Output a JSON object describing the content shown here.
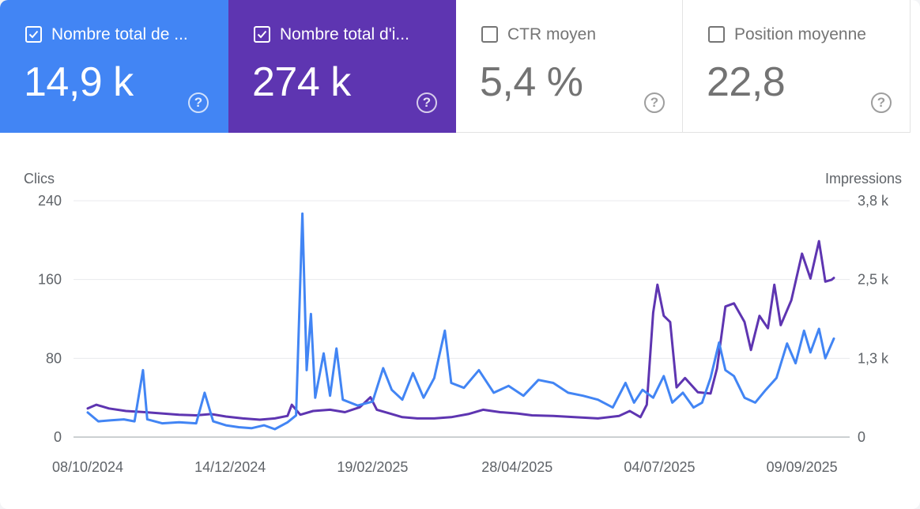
{
  "metrics": [
    {
      "label": "Nombre total de ...",
      "value": "14,9 k",
      "checked": true,
      "color": "#4285f4",
      "help": "?"
    },
    {
      "label": "Nombre total d'i...",
      "value": "274 k",
      "checked": true,
      "color": "#5e35b1",
      "help": "?"
    },
    {
      "label": "CTR moyen",
      "value": "5,4 %",
      "checked": false,
      "color": "#ffffff",
      "help": "?"
    },
    {
      "label": "Position moyenne",
      "value": "22,8",
      "checked": false,
      "color": "#ffffff",
      "help": "?"
    }
  ],
  "chart_data": {
    "type": "line",
    "ylabel_left": "Clics",
    "ylabel_right": "Impressions",
    "y_left_ticks": [
      "240",
      "160",
      "80",
      "0"
    ],
    "y_left_range": [
      0,
      240
    ],
    "y_right_ticks": [
      "3,8 k",
      "2,5 k",
      "1,3 k",
      "0"
    ],
    "y_right_range": [
      0,
      3800
    ],
    "x_ticks": [
      "08/10/2024",
      "14/12/2024",
      "19/02/2025",
      "28/04/2025",
      "04/07/2025",
      "09/09/2025"
    ],
    "x_range": [
      "2024-10-08",
      "2025-09-24"
    ],
    "grid": true,
    "series": [
      {
        "axis": "left",
        "color": "#4285f4",
        "points": [
          [
            "2024-10-08",
            25
          ],
          [
            "2024-10-13",
            16
          ],
          [
            "2024-10-19",
            17
          ],
          [
            "2024-10-25",
            18
          ],
          [
            "2024-10-30",
            16
          ],
          [
            "2024-11-03",
            68
          ],
          [
            "2024-11-05",
            18
          ],
          [
            "2024-11-12",
            14
          ],
          [
            "2024-11-20",
            15
          ],
          [
            "2024-11-28",
            14
          ],
          [
            "2024-12-02",
            45
          ],
          [
            "2024-12-06",
            16
          ],
          [
            "2024-12-12",
            12
          ],
          [
            "2024-12-18",
            10
          ],
          [
            "2024-12-24",
            9
          ],
          [
            "2024-12-30",
            12
          ],
          [
            "2025-01-04",
            8
          ],
          [
            "2025-01-10",
            15
          ],
          [
            "2025-01-14",
            22
          ],
          [
            "2025-01-17",
            227
          ],
          [
            "2025-01-19",
            68
          ],
          [
            "2025-01-21",
            125
          ],
          [
            "2025-01-23",
            40
          ],
          [
            "2025-01-27",
            85
          ],
          [
            "2025-01-30",
            42
          ],
          [
            "2025-02-02",
            90
          ],
          [
            "2025-02-05",
            38
          ],
          [
            "2025-02-12",
            32
          ],
          [
            "2025-02-19",
            36
          ],
          [
            "2025-02-24",
            70
          ],
          [
            "2025-02-28",
            48
          ],
          [
            "2025-03-05",
            38
          ],
          [
            "2025-03-10",
            65
          ],
          [
            "2025-03-15",
            40
          ],
          [
            "2025-03-20",
            60
          ],
          [
            "2025-03-25",
            108
          ],
          [
            "2025-03-28",
            55
          ],
          [
            "2025-04-03",
            50
          ],
          [
            "2025-04-10",
            68
          ],
          [
            "2025-04-17",
            45
          ],
          [
            "2025-04-24",
            52
          ],
          [
            "2025-05-01",
            42
          ],
          [
            "2025-05-08",
            58
          ],
          [
            "2025-05-15",
            55
          ],
          [
            "2025-05-22",
            45
          ],
          [
            "2025-05-29",
            42
          ],
          [
            "2025-06-05",
            38
          ],
          [
            "2025-06-12",
            30
          ],
          [
            "2025-06-18",
            55
          ],
          [
            "2025-06-22",
            35
          ],
          [
            "2025-06-26",
            48
          ],
          [
            "2025-07-01",
            40
          ],
          [
            "2025-07-06",
            62
          ],
          [
            "2025-07-10",
            35
          ],
          [
            "2025-07-15",
            45
          ],
          [
            "2025-07-20",
            30
          ],
          [
            "2025-07-24",
            35
          ],
          [
            "2025-07-28",
            60
          ],
          [
            "2025-08-01",
            96
          ],
          [
            "2025-08-04",
            68
          ],
          [
            "2025-08-08",
            62
          ],
          [
            "2025-08-13",
            40
          ],
          [
            "2025-08-18",
            35
          ],
          [
            "2025-08-23",
            48
          ],
          [
            "2025-08-28",
            60
          ],
          [
            "2025-09-02",
            95
          ],
          [
            "2025-09-06",
            75
          ],
          [
            "2025-09-10",
            108
          ],
          [
            "2025-09-13",
            86
          ],
          [
            "2025-09-17",
            110
          ],
          [
            "2025-09-20",
            80
          ],
          [
            "2025-09-24",
            100
          ]
        ]
      },
      {
        "axis": "right",
        "color": "#5e35b1",
        "points": [
          [
            "2024-10-08",
            460
          ],
          [
            "2024-10-12",
            520
          ],
          [
            "2024-10-18",
            460
          ],
          [
            "2024-10-26",
            420
          ],
          [
            "2024-11-04",
            400
          ],
          [
            "2024-11-12",
            380
          ],
          [
            "2024-11-20",
            360
          ],
          [
            "2024-11-28",
            350
          ],
          [
            "2024-12-05",
            370
          ],
          [
            "2024-12-12",
            330
          ],
          [
            "2024-12-20",
            300
          ],
          [
            "2024-12-28",
            280
          ],
          [
            "2025-01-04",
            300
          ],
          [
            "2025-01-10",
            340
          ],
          [
            "2025-01-12",
            520
          ],
          [
            "2025-01-16",
            360
          ],
          [
            "2025-01-22",
            420
          ],
          [
            "2025-01-30",
            440
          ],
          [
            "2025-02-06",
            400
          ],
          [
            "2025-02-13",
            480
          ],
          [
            "2025-02-18",
            640
          ],
          [
            "2025-02-21",
            440
          ],
          [
            "2025-02-27",
            380
          ],
          [
            "2025-03-05",
            320
          ],
          [
            "2025-03-12",
            300
          ],
          [
            "2025-03-20",
            300
          ],
          [
            "2025-03-28",
            320
          ],
          [
            "2025-04-05",
            370
          ],
          [
            "2025-04-12",
            440
          ],
          [
            "2025-04-20",
            400
          ],
          [
            "2025-04-28",
            380
          ],
          [
            "2025-05-05",
            350
          ],
          [
            "2025-05-15",
            340
          ],
          [
            "2025-05-25",
            320
          ],
          [
            "2025-06-05",
            300
          ],
          [
            "2025-06-15",
            340
          ],
          [
            "2025-06-20",
            420
          ],
          [
            "2025-06-25",
            320
          ],
          [
            "2025-06-28",
            520
          ],
          [
            "2025-07-01",
            2000
          ],
          [
            "2025-07-03",
            2450
          ],
          [
            "2025-07-06",
            1950
          ],
          [
            "2025-07-09",
            1850
          ],
          [
            "2025-07-12",
            800
          ],
          [
            "2025-07-16",
            950
          ],
          [
            "2025-07-22",
            720
          ],
          [
            "2025-07-28",
            700
          ],
          [
            "2025-07-31",
            1100
          ],
          [
            "2025-08-04",
            2100
          ],
          [
            "2025-08-08",
            2150
          ],
          [
            "2025-08-13",
            1850
          ],
          [
            "2025-08-16",
            1400
          ],
          [
            "2025-08-20",
            1950
          ],
          [
            "2025-08-24",
            1750
          ],
          [
            "2025-08-27",
            2450
          ],
          [
            "2025-08-30",
            1800
          ],
          [
            "2025-09-04",
            2200
          ],
          [
            "2025-09-09",
            2950
          ],
          [
            "2025-09-13",
            2550
          ],
          [
            "2025-09-17",
            3150
          ],
          [
            "2025-09-20",
            2500
          ],
          [
            "2025-09-23",
            2530
          ],
          [
            "2025-09-24",
            2560
          ]
        ]
      }
    ]
  }
}
